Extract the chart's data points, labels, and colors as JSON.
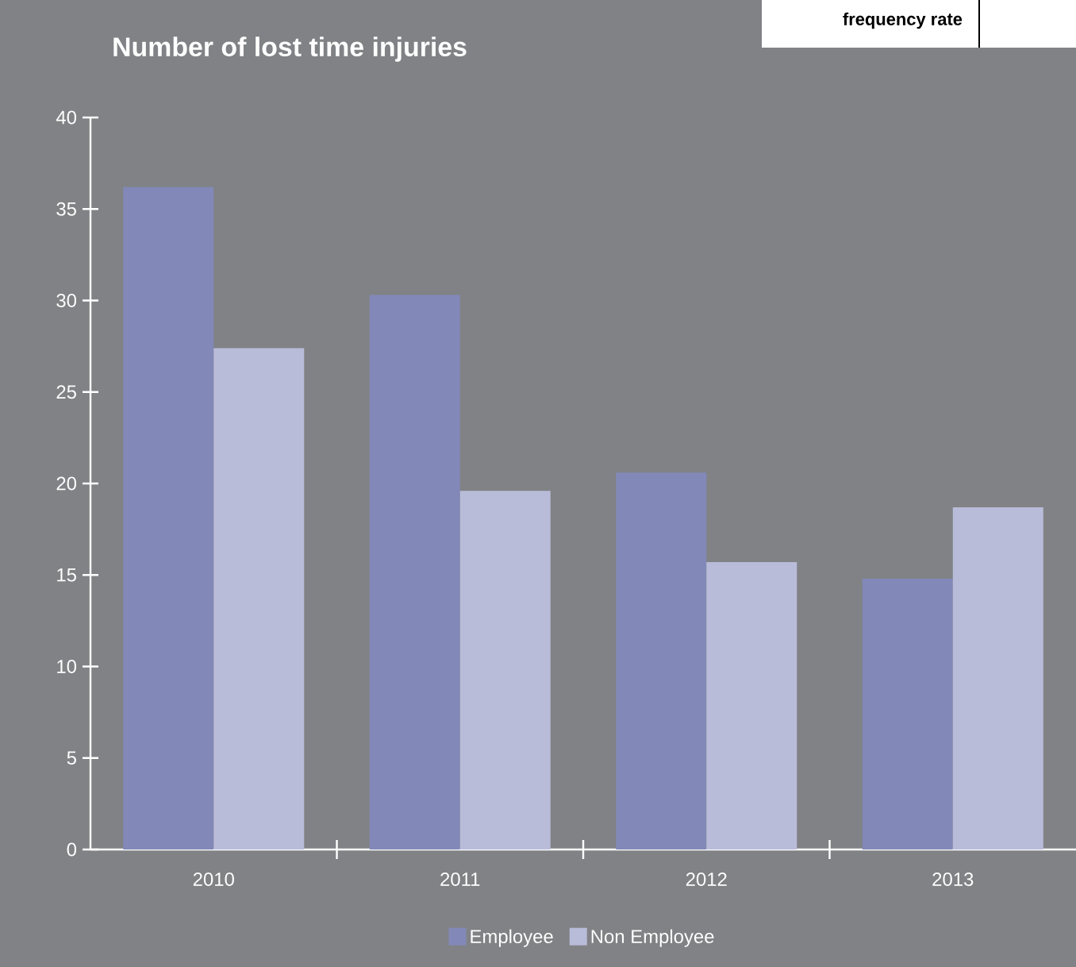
{
  "chart_data": {
    "type": "bar",
    "title": "Number of lost time injuries",
    "categories": [
      "2010",
      "2011",
      "2012",
      "2013"
    ],
    "series": [
      {
        "name": "Employee",
        "color": "#8289b8",
        "values": [
          36.2,
          30.3,
          20.6,
          14.8
        ]
      },
      {
        "name": "Non Employee",
        "color": "#b9bcd9",
        "values": [
          27.4,
          19.6,
          15.7,
          18.7
        ]
      }
    ],
    "ylim": [
      0,
      40
    ],
    "yticks": [
      0,
      5,
      10,
      15,
      20,
      25,
      30,
      35,
      40
    ],
    "grid": false,
    "legend": "bottom",
    "annotations": [
      "frequency rate"
    ]
  }
}
